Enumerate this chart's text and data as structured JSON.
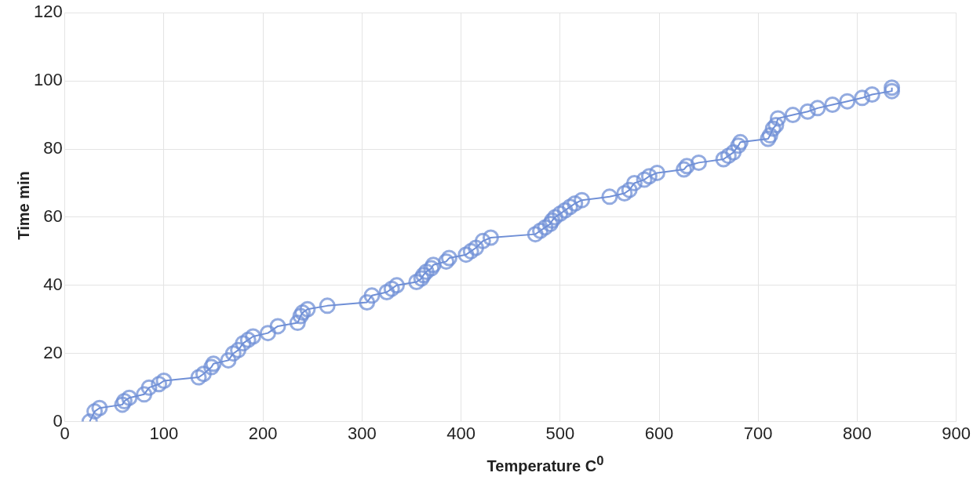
{
  "chart_data": {
    "type": "line",
    "xlabel": "Temperature C$^{0}$",
    "ylabel": "Time min",
    "marker": "circle",
    "grid": true,
    "legend": false,
    "xlim": [
      0,
      900
    ],
    "xticks": [
      0,
      100,
      200,
      300,
      400,
      500,
      600,
      700,
      800,
      900
    ],
    "ylim": [
      0,
      120
    ],
    "yticks": [
      0,
      20,
      40,
      60,
      80,
      100,
      120
    ],
    "series": [
      {
        "color": "#6f8fd6",
        "x": [
          25,
          30,
          35,
          58,
          60,
          65,
          80,
          85,
          95,
          100,
          135,
          140,
          148,
          150,
          165,
          170,
          175,
          180,
          185,
          190,
          205,
          215,
          235,
          238,
          240,
          245,
          265,
          305,
          310,
          325,
          330,
          335,
          355,
          360,
          362,
          365,
          370,
          372,
          385,
          388,
          405,
          410,
          415,
          422,
          430,
          475,
          480,
          485,
          490,
          492,
          495,
          500,
          505,
          510,
          515,
          522,
          550,
          565,
          570,
          575,
          585,
          590,
          598,
          625,
          628,
          640,
          665,
          670,
          675,
          680,
          682,
          710,
          712,
          715,
          718,
          720,
          735,
          750,
          760,
          775,
          790,
          805,
          815,
          835,
          835
        ],
        "values": [
          0,
          3,
          4,
          5,
          6,
          7,
          8,
          10,
          11,
          12,
          13,
          14,
          16,
          17,
          18,
          20,
          21,
          23,
          24,
          25,
          26,
          28,
          29,
          31,
          32,
          33,
          34,
          35,
          37,
          38,
          39,
          40,
          41,
          42,
          43,
          44,
          45,
          46,
          47,
          48,
          49,
          50,
          51,
          53,
          54,
          55,
          56,
          57,
          58,
          59,
          60,
          61,
          62,
          63,
          64,
          65,
          66,
          67,
          68,
          70,
          71,
          72,
          73,
          74,
          75,
          76,
          77,
          78,
          79,
          81,
          82,
          83,
          84,
          86,
          87,
          89,
          90,
          91,
          92,
          93,
          94,
          95,
          96,
          97,
          98
        ]
      }
    ]
  }
}
